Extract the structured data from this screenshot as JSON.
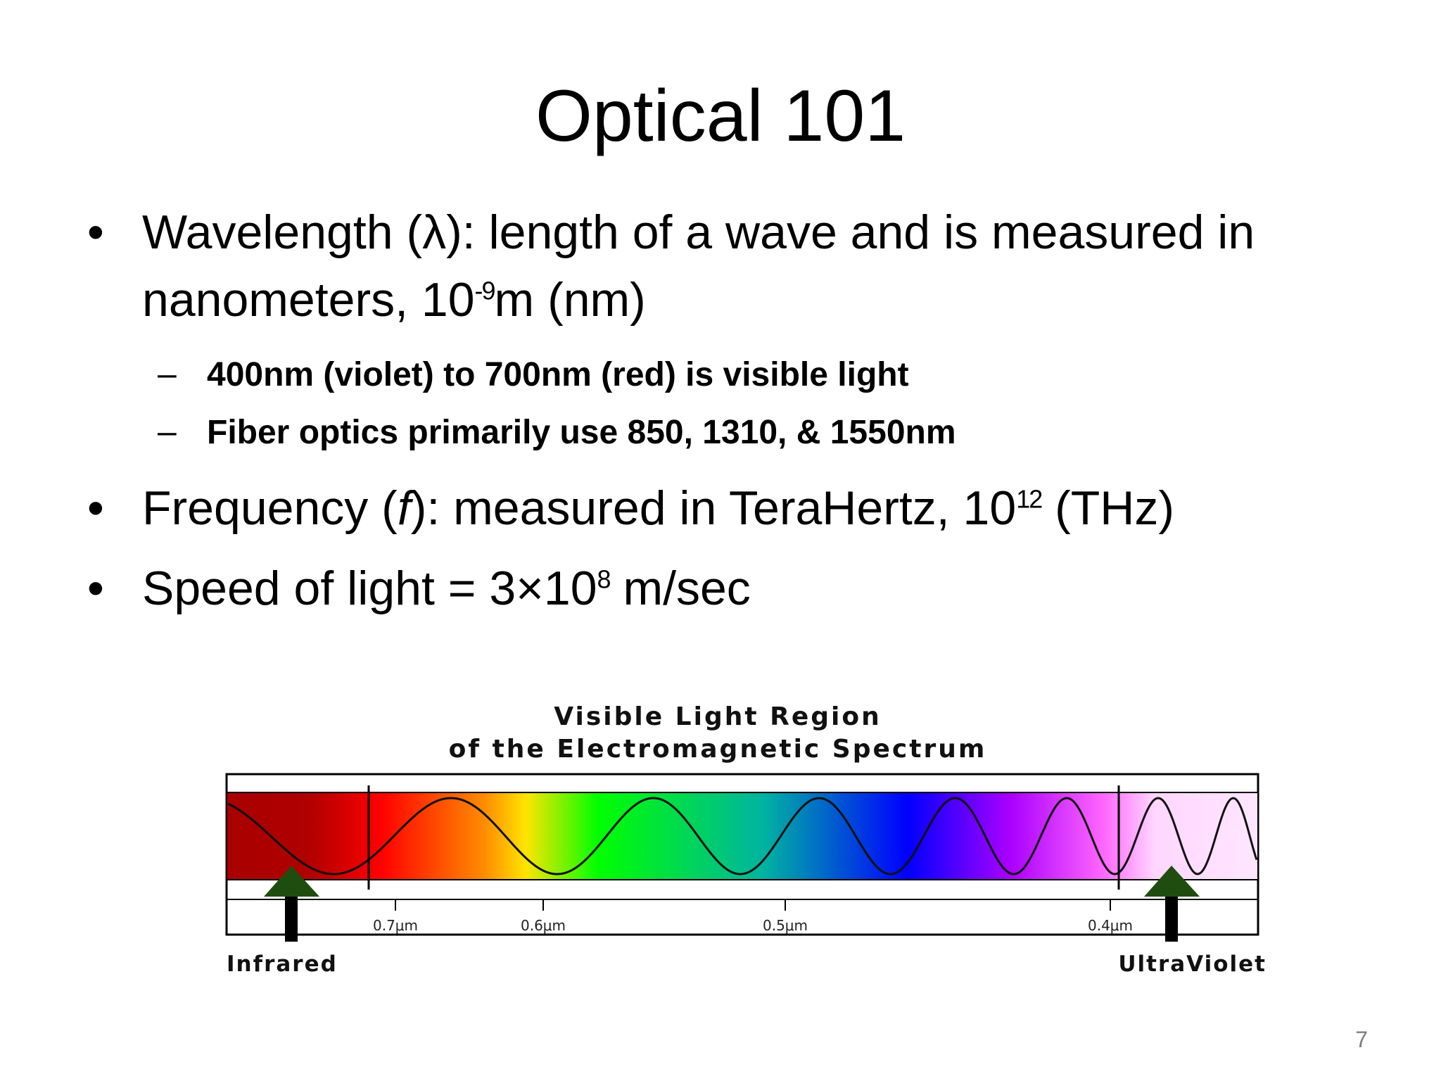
{
  "slide": {
    "title": "Optical 101",
    "page_number": "7"
  },
  "bullets": {
    "wavelength": {
      "label": "Wavelength (",
      "lambda_symbol": "λ",
      "after_symbol": "): length of a wave and is measured in nanometers, 10",
      "exponent": "-9",
      "suffix": "m (nm)",
      "sub": [
        {
          "text": "400nm (violet) to 700nm (red) is visible light"
        },
        {
          "text": "Fiber optics primarily use 850, 1310, & 1550nm"
        }
      ]
    },
    "frequency": {
      "label": "Frequency (",
      "symbol": "f",
      "after_symbol": "): measured in TeraHertz, 10",
      "exponent": "12",
      "suffix": " (THz)"
    },
    "speed": {
      "prefix": "Speed of light = 3×10",
      "exponent": "8",
      "suffix": " m/sec"
    }
  },
  "diagram": {
    "title_line1": "Visible Light Region",
    "title_line2": "of the Electromagnetic Spectrum",
    "ticks": [
      {
        "label": "0.7μm"
      },
      {
        "label": "0.6μm"
      },
      {
        "label": "0.5μm"
      },
      {
        "label": "0.4μm"
      }
    ],
    "left_label": "Infrared",
    "right_label": "UltraViolet",
    "colors": {
      "infrared": "#a80000",
      "red": "#ff0000",
      "orange": "#ff8c00",
      "yellow": "#ffe400",
      "green": "#00ff00",
      "blue": "#0000ff",
      "violet": "#aa00ff",
      "ultraviolet": "#ffd6ff",
      "arrow_head": "#1f4d0f",
      "arrow_shaft": "#000000"
    }
  }
}
